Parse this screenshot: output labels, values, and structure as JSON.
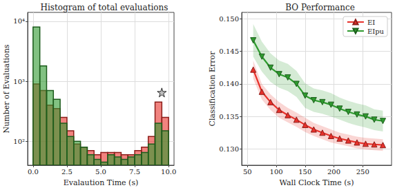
{
  "chart_data": [
    {
      "type": "histogram",
      "title": "Histogram of total evaluations",
      "xlabel": "Evalaution Time (s)",
      "ylabel": "Number of Evaluations",
      "bins": [
        0,
        0.5,
        1,
        1.5,
        2,
        2.5,
        3,
        3.5,
        4,
        4.5,
        5,
        5.5,
        6,
        6.5,
        7,
        7.5,
        8,
        8.5,
        9,
        9.5,
        10
      ],
      "series": [
        {
          "color": "#e8302a",
          "values": [
            900,
            700,
            400,
            350,
            250,
            150,
            90,
            80,
            70,
            60,
            65,
            65,
            65,
            60,
            60,
            70,
            80,
            120,
            450,
            250
          ]
        },
        {
          "color": "#2e9a2e",
          "values": [
            8000,
            1800,
            700,
            500,
            200,
            120,
            100,
            80,
            60,
            50,
            45,
            60,
            55,
            50,
            55,
            60,
            65,
            90,
            200,
            150
          ]
        }
      ],
      "xlim": [
        -0.4,
        10.4
      ],
      "xticks": [
        {
          "value": 0,
          "label": "0.0"
        },
        2.5,
        {
          "value": 5,
          "label": "5.0"
        },
        7.5,
        {
          "value": 10,
          "label": "10.0"
        }
      ],
      "ylim": [
        40,
        14000
      ],
      "yticks": [
        {
          "value": 100,
          "label": "10²"
        },
        {
          "value": 1000,
          "label": "10³"
        },
        {
          "value": 10000,
          "label": "10⁴"
        }
      ],
      "log": "y",
      "grid": true,
      "annotations": [
        {
          "x": 9.5,
          "y": 650,
          "marker": "star"
        }
      ]
    },
    {
      "type": "line",
      "title": "BO Performance",
      "xlabel": "Wall Clock Time (s)",
      "ylabel": "Classification Error",
      "x": [
        60,
        75,
        90,
        105,
        120,
        135,
        150,
        165,
        180,
        195,
        210,
        225,
        240,
        255,
        270,
        285
      ],
      "series": [
        {
          "name": "EI",
          "color": "#e8302a",
          "marker": "triangle-up",
          "values": [
            0.1422,
            0.1388,
            0.1372,
            0.136,
            0.1352,
            0.1345,
            0.1337,
            0.133,
            0.1325,
            0.132,
            0.1316,
            0.1313,
            0.131,
            0.1308,
            0.1307,
            0.1306
          ],
          "lower": [
            0.1408,
            0.1376,
            0.136,
            0.1348,
            0.1341,
            0.1334,
            0.1326,
            0.132,
            0.1315,
            0.131,
            0.1307,
            0.1304,
            0.1301,
            0.1299,
            0.1298,
            0.1297
          ],
          "upper": [
            0.1436,
            0.14,
            0.1384,
            0.1372,
            0.1363,
            0.1356,
            0.1348,
            0.134,
            0.1335,
            0.133,
            0.1325,
            0.1322,
            0.1319,
            0.1317,
            0.1316,
            0.1315
          ]
        },
        {
          "name": "EIpu",
          "color": "#2e9a2e",
          "marker": "triangle-down",
          "values": [
            0.1467,
            0.1442,
            0.1425,
            0.1415,
            0.141,
            0.14,
            0.1382,
            0.1375,
            0.1372,
            0.1368,
            0.1362,
            0.1357,
            0.1353,
            0.135,
            0.1345,
            0.1343
          ],
          "lower": [
            0.1442,
            0.1419,
            0.1403,
            0.1394,
            0.1389,
            0.138,
            0.1363,
            0.1357,
            0.1354,
            0.135,
            0.1345,
            0.134,
            0.1336,
            0.1333,
            0.1329,
            0.1327
          ],
          "upper": [
            0.1492,
            0.1465,
            0.1447,
            0.1436,
            0.1431,
            0.142,
            0.1401,
            0.1393,
            0.139,
            0.1386,
            0.1379,
            0.1374,
            0.137,
            0.1367,
            0.1361,
            0.1359
          ]
        }
      ],
      "xlim": [
        40,
        300
      ],
      "xticks": [
        50,
        100,
        150,
        200,
        250
      ],
      "ylim": [
        0.1275,
        0.151
      ],
      "yticks": [
        {
          "value": 0.13,
          "label": "0.130"
        },
        0.135,
        {
          "value": 0.14,
          "label": "0.140"
        },
        0.145,
        {
          "value": 0.15,
          "label": "0.150"
        }
      ],
      "grid": true,
      "legend": "upper right"
    }
  ]
}
